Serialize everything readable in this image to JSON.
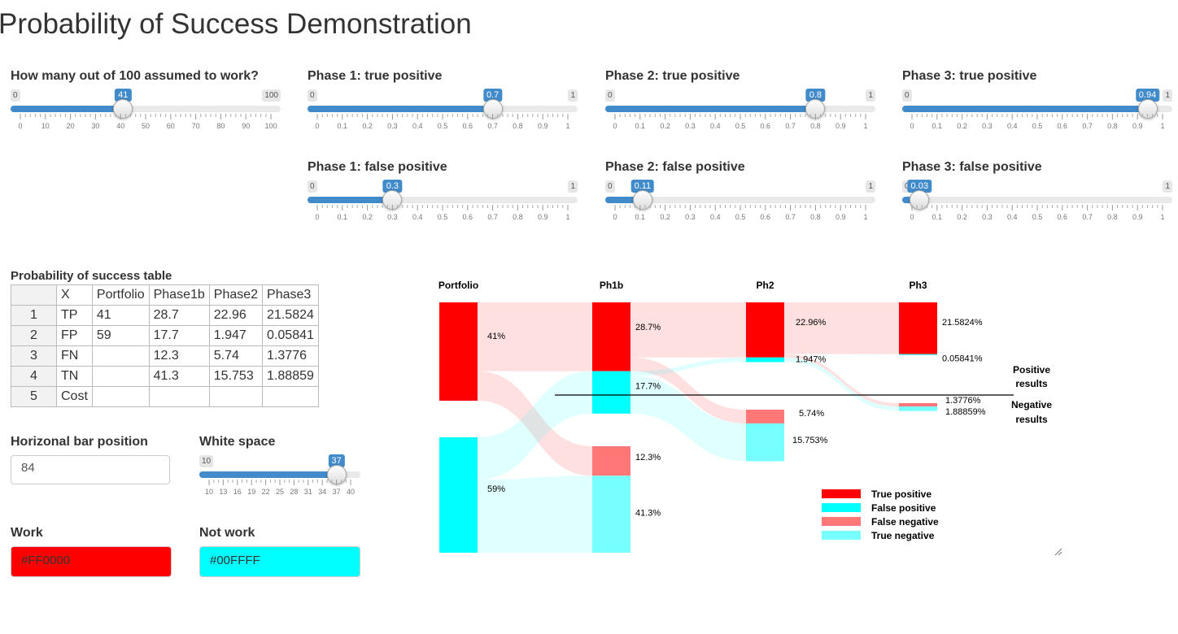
{
  "app": {
    "title": "Probability of Success Demonstration"
  },
  "sliders": [
    {
      "id": "work",
      "label": "How many out of 100 assumed to work?",
      "min": 0,
      "max": 100,
      "min_label": "0",
      "max_label": "100",
      "value": 41,
      "value_label": "41",
      "ticks": [
        "0",
        "10",
        "20",
        "30",
        "40",
        "50",
        "60",
        "70",
        "80",
        "90",
        "100"
      ],
      "minor": 5
    },
    {
      "id": "ph1tp",
      "label": "Phase 1: true positive",
      "min": 0,
      "max": 1,
      "min_label": "0",
      "max_label": "1",
      "value": 0.7,
      "value_label": "0.7",
      "ticks": [
        "0",
        "0.1",
        "0.2",
        "0.3",
        "0.4",
        "0.5",
        "0.6",
        "0.7",
        "0.8",
        "0.9",
        "1"
      ],
      "minor": 5
    },
    {
      "id": "ph2tp",
      "label": "Phase 2: true positive",
      "min": 0,
      "max": 1,
      "min_label": "0",
      "max_label": "1",
      "value": 0.8,
      "value_label": "0.8",
      "ticks": [
        "0",
        "0.1",
        "0.2",
        "0.3",
        "0.4",
        "0.5",
        "0.6",
        "0.7",
        "0.8",
        "0.9",
        "1"
      ],
      "minor": 5
    },
    {
      "id": "ph3tp",
      "label": "Phase 3: true positive",
      "min": 0,
      "max": 1,
      "min_label": "0",
      "max_label": "1",
      "value": 0.94,
      "value_label": "0.94",
      "ticks": [
        "0",
        "0.1",
        "0.2",
        "0.3",
        "0.4",
        "0.5",
        "0.6",
        "0.7",
        "0.8",
        "0.9",
        "1"
      ],
      "minor": 5
    },
    {
      "id": "ph1fp",
      "label": "Phase 1: false positive",
      "min": 0,
      "max": 1,
      "min_label": "0",
      "max_label": "1",
      "value": 0.3,
      "value_label": "0.3",
      "ticks": [
        "0",
        "0.1",
        "0.2",
        "0.3",
        "0.4",
        "0.5",
        "0.6",
        "0.7",
        "0.8",
        "0.9",
        "1"
      ],
      "minor": 5
    },
    {
      "id": "ph2fp",
      "label": "Phase 2: false positive",
      "min": 0,
      "max": 1,
      "min_label": "0",
      "max_label": "1",
      "value": 0.11,
      "value_label": "0.11",
      "ticks": [
        "0",
        "0.1",
        "0.2",
        "0.3",
        "0.4",
        "0.5",
        "0.6",
        "0.7",
        "0.8",
        "0.9",
        "1"
      ],
      "minor": 5
    },
    {
      "id": "ph3fp",
      "label": "Phase 3: false positive",
      "min": 0,
      "max": 1,
      "min_label": "0",
      "max_label": "1",
      "value": 0.03,
      "value_label": "0.03",
      "ticks": [
        "0",
        "0.1",
        "0.2",
        "0.3",
        "0.4",
        "0.5",
        "0.6",
        "0.7",
        "0.8",
        "0.9",
        "1"
      ],
      "minor": 5
    },
    {
      "id": "whitespace",
      "label": "White space",
      "min": 10,
      "max": 40,
      "min_label": "10",
      "max_label": "",
      "value": 37,
      "value_label": "37",
      "ticks": [
        "10",
        "13",
        "16",
        "19",
        "22",
        "25",
        "28",
        "31",
        "34",
        "37",
        "40"
      ],
      "minor": 3
    }
  ],
  "table": {
    "title": "Probability of success table",
    "headers": [
      "",
      "X",
      "Portfolio",
      "Phase1b",
      "Phase2",
      "Phase3"
    ],
    "rows": [
      [
        "1",
        "TP",
        "41",
        "28.7",
        "22.96",
        "21.5824"
      ],
      [
        "2",
        "FP",
        "59",
        "17.7",
        "1.947",
        "0.05841"
      ],
      [
        "3",
        "FN",
        "",
        "12.3",
        "5.74",
        "1.3776"
      ],
      [
        "4",
        "TN",
        "",
        "41.3",
        "15.753",
        "1.88859"
      ],
      [
        "5",
        "Cost",
        "",
        "",
        "",
        ""
      ]
    ]
  },
  "bar_position": {
    "label": "Horizonal bar position",
    "value": "84"
  },
  "work_color": {
    "label": "Work",
    "value": "#FF0000"
  },
  "notwork_color": {
    "label": "Not work",
    "value": "#00FFFF"
  },
  "colors": {
    "work": "#FF0000",
    "notwork": "#00FFFF",
    "fn": "#FF7777",
    "tn": "#77FFFF",
    "accent": "#428bca"
  },
  "chart_data": {
    "type": "sankey",
    "stages": [
      "Portfolio",
      "Ph1b",
      "Ph2",
      "Ph3"
    ],
    "nodes": [
      {
        "stage": "Portfolio",
        "kind": "work",
        "value": 41,
        "label": "41%"
      },
      {
        "stage": "Portfolio",
        "kind": "notwork",
        "value": 59,
        "label": "59%"
      },
      {
        "stage": "Ph1b",
        "kind": "TP",
        "value": 28.7,
        "label": "28.7%"
      },
      {
        "stage": "Ph1b",
        "kind": "FP",
        "value": 17.7,
        "label": "17.7%"
      },
      {
        "stage": "Ph1b",
        "kind": "FN",
        "value": 12.3,
        "label": "12.3%"
      },
      {
        "stage": "Ph1b",
        "kind": "TN",
        "value": 41.3,
        "label": "41.3%"
      },
      {
        "stage": "Ph2",
        "kind": "TP",
        "value": 22.96,
        "label": "22.96%"
      },
      {
        "stage": "Ph2",
        "kind": "FP",
        "value": 1.947,
        "label": "1.947%"
      },
      {
        "stage": "Ph2",
        "kind": "FN",
        "value": 5.74,
        "label": "5.74%"
      },
      {
        "stage": "Ph2",
        "kind": "TN",
        "value": 15.753,
        "label": "15.753%"
      },
      {
        "stage": "Ph3",
        "kind": "TP",
        "value": 21.5824,
        "label": "21.5824%"
      },
      {
        "stage": "Ph3",
        "kind": "FP",
        "value": 0.05841,
        "label": "0.05841%"
      },
      {
        "stage": "Ph3",
        "kind": "FN",
        "value": 1.3776,
        "label": "1.3776%"
      },
      {
        "stage": "Ph3",
        "kind": "TN",
        "value": 1.88859,
        "label": "1.88859%"
      }
    ],
    "divider_labels": {
      "positive": [
        "Positive",
        "results"
      ],
      "negative": [
        "Negative",
        "results"
      ]
    },
    "legend": [
      {
        "label": "True positive",
        "color": "#FF0000"
      },
      {
        "label": "False positive",
        "color": "#00FFFF"
      },
      {
        "label": "False negative",
        "color": "#FF7777"
      },
      {
        "label": "True negative",
        "color": "#77FFFF"
      }
    ]
  }
}
